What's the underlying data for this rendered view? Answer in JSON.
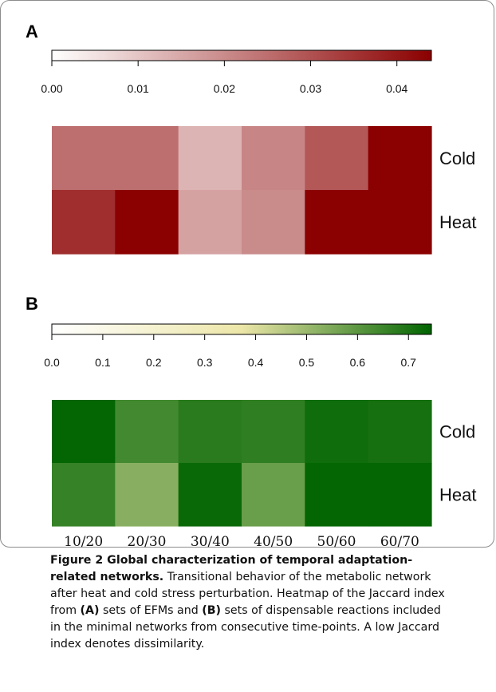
{
  "panel_a_label": "A",
  "panel_b_label": "B",
  "caption": {
    "title": "Figure 2 Global characterization of temporal adaptation-related networks.",
    "text_1": " Transitional behavior of the metabolic network after heat and cold stress perturbation. Heatmap of the Jaccard index from ",
    "label_a": "(A)",
    "text_2": " sets of EFMs and ",
    "label_b": "(B)",
    "text_3": " sets of dispensable reactions included in the minimal networks from consecutive time-points. A low Jaccard index denotes dissimilarity."
  },
  "chart_data": [
    {
      "type": "heatmap",
      "panel": "A",
      "rows": [
        "Cold",
        "Heat"
      ],
      "columns": [
        "10/20",
        "20/30",
        "30/40",
        "40/50",
        "50/60",
        "60/70"
      ],
      "values": [
        [
          0.025,
          0.025,
          0.013,
          0.021,
          0.029,
          0.044
        ],
        [
          0.036,
          0.044,
          0.016,
          0.02,
          0.044,
          0.044
        ]
      ],
      "colorbar": {
        "min": 0.0,
        "max": 0.044,
        "ticks": [
          0.0,
          0.01,
          0.02,
          0.03,
          0.04
        ],
        "tick_labels": [
          "0.00",
          "0.01",
          "0.02",
          "0.03",
          "0.04"
        ],
        "low_color": "#ffffff",
        "high_color": "#8b0000"
      }
    },
    {
      "type": "heatmap",
      "panel": "B",
      "rows": [
        "Cold",
        "Heat"
      ],
      "columns": [
        "10/20",
        "20/30",
        "30/40",
        "40/50",
        "50/60",
        "60/70"
      ],
      "values": [
        [
          0.74,
          0.64,
          0.68,
          0.67,
          0.72,
          0.71
        ],
        [
          0.66,
          0.53,
          0.73,
          0.58,
          0.74,
          0.74
        ]
      ],
      "colorbar": {
        "min": 0.0,
        "max": 0.745,
        "ticks": [
          0.0,
          0.1,
          0.2,
          0.3,
          0.4,
          0.5,
          0.6,
          0.7
        ],
        "tick_labels": [
          "0.0",
          "0.1",
          "0.2",
          "0.3",
          "0.4",
          "0.5",
          "0.6",
          "0.7"
        ],
        "low_color": "#ffffff",
        "mid_color": "#ece6a8",
        "high_color": "#006400"
      }
    }
  ]
}
